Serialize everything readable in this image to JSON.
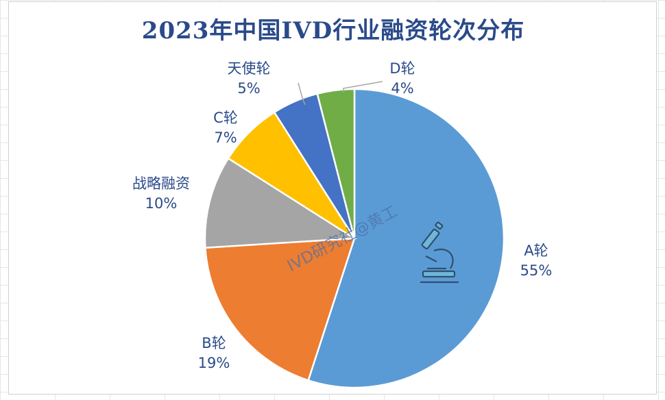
{
  "chart_data": {
    "type": "pie",
    "title": "2023年中国IVD行业融资轮次分布",
    "slices": [
      {
        "name": "A轮",
        "pct_label": "55%",
        "value": 55,
        "color": "#5b9bd5"
      },
      {
        "name": "B轮",
        "pct_label": "19%",
        "value": 19,
        "color": "#ed7d31"
      },
      {
        "name": "战略融资",
        "pct_label": "10%",
        "value": 10,
        "color": "#a5a5a5"
      },
      {
        "name": "C轮",
        "pct_label": "7%",
        "value": 7,
        "color": "#ffc000"
      },
      {
        "name": "天使轮",
        "pct_label": "5%",
        "value": 5,
        "color": "#4472c4"
      },
      {
        "name": "D轮",
        "pct_label": "4%",
        "value": 4,
        "color": "#70ad47"
      }
    ],
    "watermark": "IVD研究社@黄工",
    "icon": "microscope-icon"
  }
}
